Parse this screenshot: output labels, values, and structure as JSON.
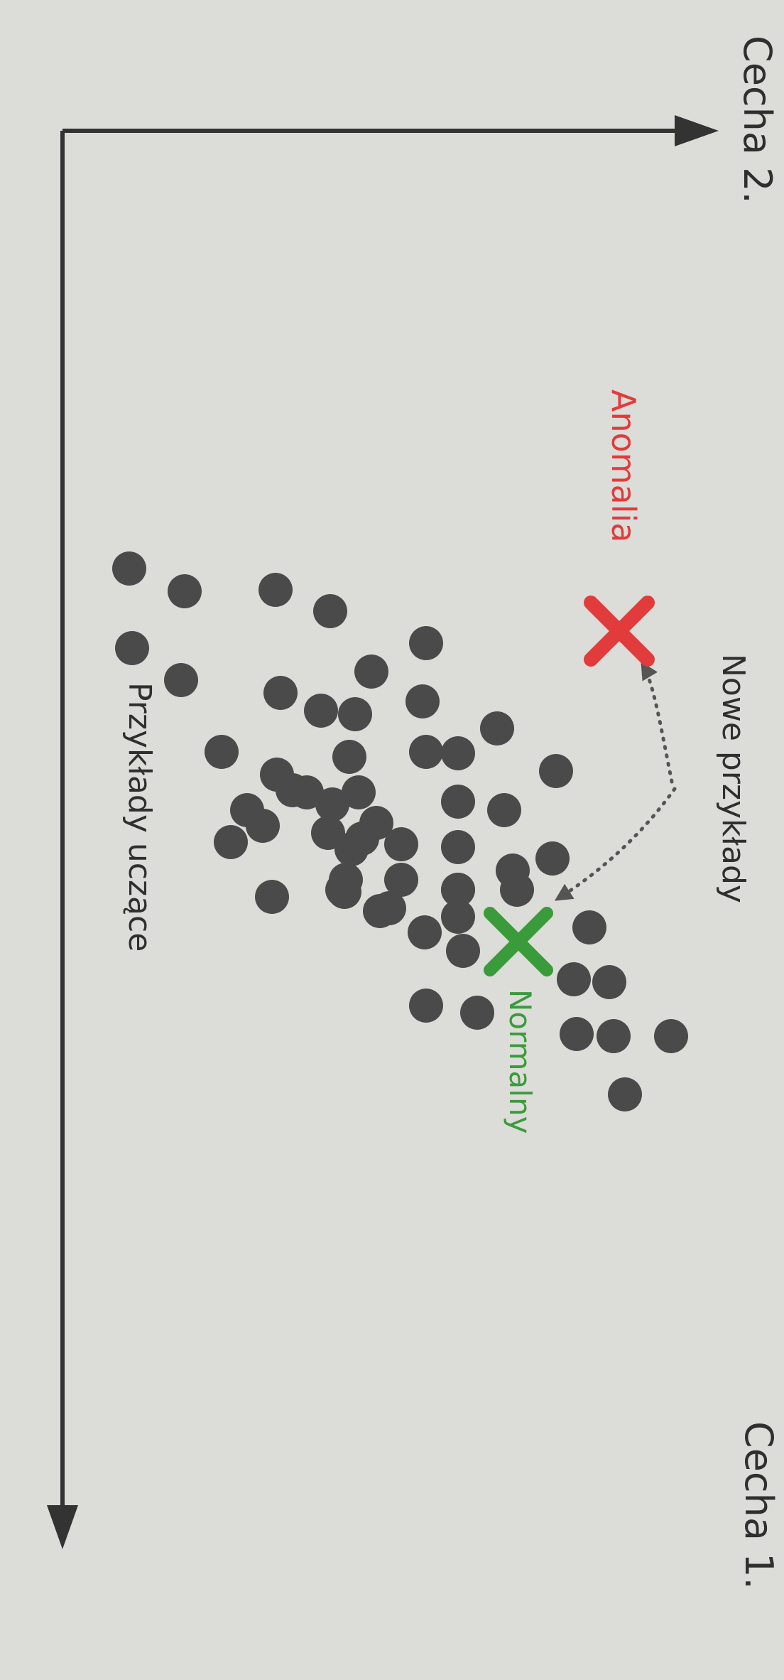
{
  "axes": {
    "feature1_label": "Cecha 1.",
    "feature2_label": "Cecha 2."
  },
  "labels": {
    "new_examples": "Nowe przykłady",
    "anomaly": "Anomalia",
    "normal": "Normalny",
    "training_examples": "Przykłady uczące"
  },
  "colors": {
    "background": "#dcdcd8",
    "axis": "#333333",
    "points": "#4a4a4a",
    "anomaly": "#e23b3b",
    "normal": "#3a9b3a",
    "text": "#2f2f2f"
  }
}
